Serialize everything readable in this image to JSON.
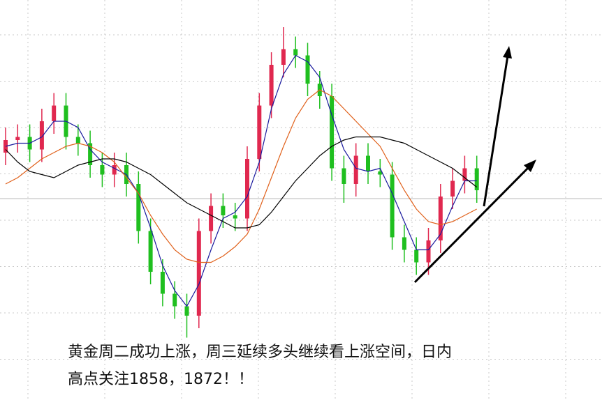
{
  "chart_data": {
    "type": "candlestick",
    "ylim": [
      1780,
      1880
    ],
    "grid": true,
    "up_color": "#e0284f",
    "down_color": "#1fbf1f",
    "open": [
      1838,
      1842,
      1843,
      1839,
      1848,
      1853,
      1843,
      1841,
      1834,
      1831,
      1834,
      1828,
      1813,
      1800,
      1793,
      1789,
      1786,
      1813,
      1821,
      1818,
      1817,
      1836,
      1853,
      1866,
      1871,
      1869,
      1860,
      1856,
      1833,
      1828,
      1837,
      1832,
      1831,
      1811,
      1807,
      1803,
      1810,
      1824,
      1829,
      1833
    ],
    "high": [
      1846,
      1847,
      1847,
      1852,
      1857,
      1857,
      1847,
      1845,
      1838,
      1838,
      1838,
      1832,
      1817,
      1804,
      1797,
      1793,
      1817,
      1825,
      1825,
      1822,
      1840,
      1857,
      1870,
      1878,
      1875,
      1873,
      1864,
      1860,
      1837,
      1841,
      1841,
      1836,
      1835,
      1815,
      1811,
      1814,
      1828,
      1833,
      1837,
      1837
    ],
    "low": [
      1834,
      1838,
      1835,
      1835,
      1844,
      1839,
      1837,
      1830,
      1827,
      1827,
      1824,
      1809,
      1796,
      1789,
      1785,
      1779,
      1782,
      1809,
      1814,
      1813,
      1813,
      1832,
      1849,
      1862,
      1865,
      1856,
      1852,
      1829,
      1822,
      1824,
      1828,
      1827,
      1807,
      1803,
      1799,
      1799,
      1806,
      1820,
      1825,
      1822
    ],
    "close": [
      1842,
      1843,
      1839,
      1848,
      1853,
      1843,
      1841,
      1834,
      1831,
      1834,
      1828,
      1813,
      1800,
      1793,
      1789,
      1786,
      1813,
      1821,
      1818,
      1817,
      1836,
      1853,
      1866,
      1871,
      1869,
      1860,
      1856,
      1833,
      1828,
      1837,
      1832,
      1831,
      1811,
      1807,
      1803,
      1810,
      1824,
      1829,
      1833,
      1826
    ],
    "series": [
      {
        "color": "#1a1a9e",
        "values": [
          1840,
          1841,
          1841,
          1843,
          1848,
          1848,
          1846,
          1839,
          1835,
          1833,
          1831,
          1825,
          1814,
          1802,
          1794,
          1789,
          1796,
          1807,
          1817,
          1819,
          1824,
          1835,
          1852,
          1863,
          1869,
          1867,
          1862,
          1850,
          1839,
          1833,
          1832,
          1833,
          1825,
          1816,
          1807,
          1807,
          1812,
          1821,
          1829,
          1829
        ]
      },
      {
        "color": "#e0601a",
        "values": [
          1828,
          1830,
          1833,
          1836,
          1838,
          1840,
          1841,
          1840,
          1838,
          1835,
          1830,
          1825,
          1818,
          1812,
          1807,
          1804,
          1803,
          1803,
          1805,
          1808,
          1812,
          1820,
          1830,
          1840,
          1849,
          1855,
          1858,
          1856,
          1852,
          1848,
          1844,
          1840,
          1833,
          1826,
          1820,
          1816,
          1815,
          1816,
          1818,
          1820
        ]
      },
      {
        "color": "#000000",
        "values": [
          1839,
          1835,
          1832,
          1831,
          1830,
          1832,
          1834,
          1835,
          1836,
          1836,
          1835,
          1833,
          1831,
          1828,
          1825,
          1822,
          1820,
          1818,
          1816,
          1814,
          1814,
          1815,
          1819,
          1824,
          1829,
          1833,
          1837,
          1840,
          1842,
          1843,
          1843,
          1843,
          1842,
          1841,
          1839,
          1837,
          1835,
          1833,
          1830,
          1827
        ]
      }
    ],
    "annotation": [
      "黄金周二成功上涨，周三延续多头继续看上涨空间，日内",
      "高点关注1858，1872！！"
    ]
  }
}
